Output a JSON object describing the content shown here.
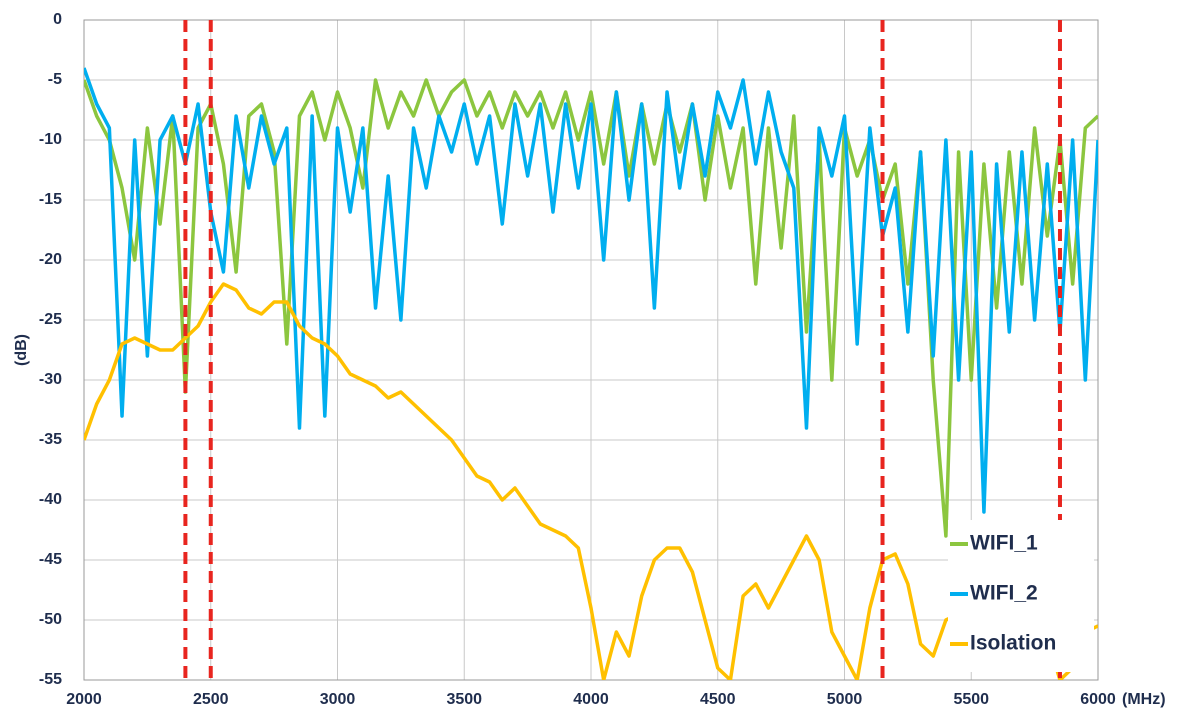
{
  "chart_data": {
    "type": "line",
    "ylabel": "(dB)",
    "xunit": "(MHz)",
    "x": [
      2000,
      2050,
      2100,
      2150,
      2200,
      2250,
      2300,
      2350,
      2400,
      2450,
      2500,
      2550,
      2600,
      2650,
      2700,
      2750,
      2800,
      2850,
      2900,
      2950,
      3000,
      3050,
      3100,
      3150,
      3200,
      3250,
      3300,
      3350,
      3400,
      3450,
      3500,
      3550,
      3600,
      3650,
      3700,
      3750,
      3800,
      3850,
      3900,
      3950,
      4000,
      4050,
      4100,
      4150,
      4200,
      4250,
      4300,
      4350,
      4400,
      4450,
      4500,
      4550,
      4600,
      4650,
      4700,
      4750,
      4800,
      4850,
      4900,
      4950,
      5000,
      5050,
      5100,
      5150,
      5200,
      5250,
      5300,
      5350,
      5400,
      5450,
      5500,
      5550,
      5600,
      5650,
      5700,
      5750,
      5800,
      5850,
      5900,
      5950,
      6000
    ],
    "series": [
      {
        "name": "WIFI_1",
        "color": "#8cc63f",
        "values": [
          -5,
          -8,
          -10,
          -14,
          -20,
          -9,
          -17,
          -8,
          -31,
          -9,
          -7,
          -12,
          -21,
          -8,
          -7,
          -11,
          -27,
          -8,
          -6,
          -10,
          -6,
          -9,
          -14,
          -5,
          -9,
          -6,
          -8,
          -5,
          -8,
          -6,
          -5,
          -8,
          -6,
          -9,
          -6,
          -8,
          -6,
          -9,
          -6,
          -10,
          -6,
          -12,
          -6,
          -13,
          -7,
          -12,
          -7,
          -11,
          -7,
          -15,
          -8,
          -14,
          -9,
          -22,
          -9,
          -19,
          -8,
          -26,
          -10,
          -30,
          -9,
          -13,
          -10,
          -15,
          -12,
          -22,
          -11,
          -30,
          -43,
          -11,
          -30,
          -12,
          -24,
          -11,
          -22,
          -9,
          -18,
          -10,
          -22,
          -9,
          -8
        ]
      },
      {
        "name": "WIFI_2",
        "color": "#00aeef",
        "values": [
          -4,
          -7,
          -9,
          -33,
          -10,
          -28,
          -10,
          -8,
          -12,
          -7,
          -16,
          -21,
          -8,
          -14,
          -8,
          -12,
          -9,
          -34,
          -8,
          -33,
          -9,
          -16,
          -9,
          -24,
          -13,
          -25,
          -9,
          -14,
          -8,
          -11,
          -7,
          -12,
          -8,
          -17,
          -7,
          -13,
          -7,
          -16,
          -7,
          -14,
          -7,
          -20,
          -6,
          -15,
          -7,
          -24,
          -6,
          -14,
          -7,
          -13,
          -6,
          -9,
          -5,
          -12,
          -6,
          -11,
          -14,
          -34,
          -9,
          -13,
          -8,
          -27,
          -9,
          -18,
          -14,
          -26,
          -11,
          -28,
          -10,
          -30,
          -11,
          -41,
          -12,
          -26,
          -11,
          -25,
          -12,
          -26,
          -10,
          -30,
          -10
        ]
      },
      {
        "name": "Isolation",
        "color": "#ffc000",
        "values": [
          -35,
          -32,
          -30,
          -27,
          -26.5,
          -27,
          -27.5,
          -27.5,
          -26.5,
          -25.5,
          -23.5,
          -22,
          -22.5,
          -24,
          -24.5,
          -23.5,
          -23.5,
          -25.5,
          -26.5,
          -27,
          -28,
          -29.5,
          -30,
          -30.5,
          -31.5,
          -31,
          -32,
          -33,
          -34,
          -35,
          -36.5,
          -38,
          -38.5,
          -40,
          -39,
          -40.5,
          -42,
          -42.5,
          -43,
          -44,
          -49,
          -55,
          -51,
          -53,
          -48,
          -45,
          -44,
          -44,
          -46,
          -50,
          -54,
          -55,
          -48,
          -47,
          -49,
          -47,
          -45,
          -43,
          -45,
          -51,
          -53,
          -55,
          -49,
          -45,
          -44.5,
          -47,
          -52,
          -53,
          -50,
          -49.5,
          -52,
          -51,
          -50.5,
          -51,
          -50,
          -51,
          -51.5,
          -55,
          -54,
          -51,
          -50.5
        ]
      }
    ],
    "markers": [
      2400,
      2500,
      5150,
      5850
    ],
    "marker_color": "#e8251f",
    "xlim": [
      2000,
      6000
    ],
    "xticks": [
      2000,
      2500,
      3000,
      3500,
      4000,
      4500,
      5000,
      5500,
      6000
    ],
    "ylim": [
      -55,
      0
    ],
    "yticks": [
      0,
      -5,
      -10,
      -15,
      -20,
      -25,
      -30,
      -35,
      -40,
      -45,
      -50,
      -55
    ],
    "grid": true,
    "legend": "lower right"
  }
}
